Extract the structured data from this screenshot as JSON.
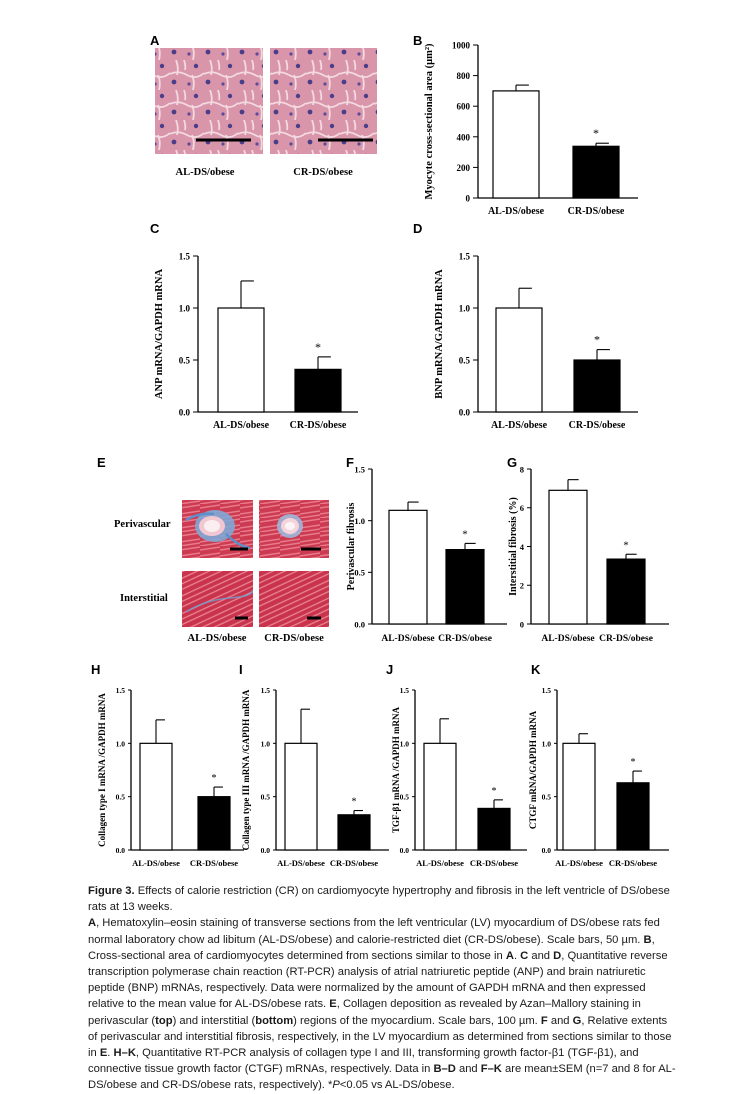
{
  "figure": {
    "panel_letters": [
      "A",
      "B",
      "C",
      "D",
      "E",
      "F",
      "G",
      "H",
      "I",
      "J",
      "K"
    ],
    "panelA": {
      "labels": [
        "AL-DS/obese",
        "CR-DS/obese"
      ]
    },
    "panelE": {
      "row_labels": [
        "Perivascular",
        "Interstitial"
      ],
      "col_labels": [
        "AL-DS/obese",
        "CR-DS/obese"
      ]
    },
    "colors": {
      "bar_al": "#ffffff",
      "bar_cr": "#000000",
      "tissue_he": "#d98fa6",
      "tissue_azan": "#c8334a",
      "azan_blue": "#6b9fd0",
      "nucleus": "#4a3d8a"
    }
  },
  "chart_data": [
    {
      "id": "B",
      "type": "bar",
      "ylabel": "Myocyte cross-sectional area (µm²)",
      "categories": [
        "AL-DS/obese",
        "CR-DS/obese"
      ],
      "values": [
        700,
        338
      ],
      "errors": [
        38,
        20
      ],
      "ylim": [
        0,
        1000
      ],
      "yticks": [
        "0",
        "200",
        "400",
        "600",
        "800",
        "1000"
      ],
      "yvals": [
        0,
        200,
        400,
        600,
        800,
        1000
      ],
      "annotations": [
        "",
        "*"
      ]
    },
    {
      "id": "C",
      "type": "bar",
      "ylabel": "ANP mRNA/GAPDH mRNA",
      "categories": [
        "AL-DS/obese",
        "CR-DS/obese"
      ],
      "values": [
        1.0,
        0.41
      ],
      "errors": [
        0.26,
        0.12
      ],
      "ylim": [
        0,
        1.5
      ],
      "yticks": [
        "0.0",
        "0.5",
        "1.0",
        "1.5"
      ],
      "yvals": [
        0,
        0.5,
        1.0,
        1.5
      ],
      "annotations": [
        "",
        "*"
      ]
    },
    {
      "id": "D",
      "type": "bar",
      "ylabel": "BNP mRNA/GAPDH mRNA",
      "categories": [
        "AL-DS/obese",
        "CR-DS/obese"
      ],
      "values": [
        1.0,
        0.5
      ],
      "errors": [
        0.19,
        0.1
      ],
      "ylim": [
        0,
        1.5
      ],
      "yticks": [
        "0.0",
        "0.5",
        "1.0",
        "1.5"
      ],
      "yvals": [
        0,
        0.5,
        1.0,
        1.5
      ],
      "annotations": [
        "",
        "*"
      ]
    },
    {
      "id": "F",
      "type": "bar",
      "ylabel": "Perivascular fibrosis",
      "categories": [
        "AL-DS/obese",
        "CR-DS/obese"
      ],
      "values": [
        1.1,
        0.72
      ],
      "errors": [
        0.08,
        0.06
      ],
      "ylim": [
        0,
        1.5
      ],
      "yticks": [
        "0.0",
        "0.5",
        "1.0",
        "1.5"
      ],
      "yvals": [
        0,
        0.5,
        1.0,
        1.5
      ],
      "annotations": [
        "",
        "*"
      ]
    },
    {
      "id": "G",
      "type": "bar",
      "ylabel": "Interstitial fibrosis (%)",
      "categories": [
        "AL-DS/obese",
        "CR-DS/obese"
      ],
      "values": [
        6.9,
        3.35
      ],
      "errors": [
        0.55,
        0.25
      ],
      "ylim": [
        0,
        8
      ],
      "yticks": [
        "0",
        "2",
        "4",
        "6",
        "8"
      ],
      "yvals": [
        0,
        2,
        4,
        6,
        8
      ],
      "annotations": [
        "",
        "*"
      ]
    },
    {
      "id": "H",
      "type": "bar",
      "ylabel": "Collagen type I mRNA /GAPDH mRNA",
      "categories": [
        "AL-DS/obese",
        "CR-DS/obese"
      ],
      "values": [
        1.0,
        0.5
      ],
      "errors": [
        0.22,
        0.09
      ],
      "ylim": [
        0,
        1.5
      ],
      "yticks": [
        "0.0",
        "0.5",
        "1.0",
        "1.5"
      ],
      "yvals": [
        0,
        0.5,
        1.0,
        1.5
      ],
      "annotations": [
        "",
        "*"
      ]
    },
    {
      "id": "I",
      "type": "bar",
      "ylabel": "Collagen type III mRNA /GAPDH mRNA",
      "categories": [
        "AL-DS/obese",
        "CR-DS/obese"
      ],
      "values": [
        1.0,
        0.33
      ],
      "errors": [
        0.32,
        0.04
      ],
      "ylim": [
        0,
        1.5
      ],
      "yticks": [
        "0.0",
        "0.5",
        "1.0",
        "1.5"
      ],
      "yvals": [
        0,
        0.5,
        1.0,
        1.5
      ],
      "annotations": [
        "",
        "*"
      ]
    },
    {
      "id": "J",
      "type": "bar",
      "ylabel": "TGF-β1 mRNA /GAPDH mRNA",
      "categories": [
        "AL-DS/obese",
        "CR-DS/obese"
      ],
      "values": [
        1.0,
        0.39
      ],
      "errors": [
        0.23,
        0.08
      ],
      "ylim": [
        0,
        1.5
      ],
      "yticks": [
        "0.0",
        "0.5",
        "1.0",
        "1.5"
      ],
      "yvals": [
        0,
        0.5,
        1.0,
        1.5
      ],
      "annotations": [
        "",
        "*"
      ]
    },
    {
      "id": "K",
      "type": "bar",
      "ylabel": "CTGF mRNA/GAPDH mRNA",
      "categories": [
        "AL-DS/obese",
        "CR-DS/obese"
      ],
      "values": [
        1.0,
        0.63
      ],
      "errors": [
        0.09,
        0.11
      ],
      "ylim": [
        0,
        1.5
      ],
      "yticks": [
        "0.0",
        "0.5",
        "1.0",
        "1.5"
      ],
      "yvals": [
        0,
        0.5,
        1.0,
        1.5
      ],
      "annotations": [
        "",
        "*"
      ]
    }
  ],
  "caption": {
    "label": "Figure 3.",
    "title": "Effects of calorie restriction (CR) on cardiomyocyte hypertrophy and fibrosis in the left ventricle of DS/obese rats at 13 weeks.",
    "text_A": ", Hematoxylin–eosin staining of transverse sections from the left ventricular (LV) myocardium of DS/obese rats fed normal laboratory chow ad libitum (AL-DS/obese) and calorie-restricted diet (CR-DS/obese). Scale bars, 50 µm. ",
    "text_B": ", Cross-sectional area of cardiomyocytes determined from sections similar to those in ",
    "text_A2": ". ",
    "text_CD_and": " and ",
    "text_CD": ", Quantitative reverse transcription polymerase chain reaction (RT-PCR) analysis of atrial natriuretic peptide (ANP) and brain natriuretic peptide (BNP) mRNAs, respectively. Data were normalized by the amount of GAPDH mRNA and then expressed relative to the mean value for AL-DS/obese rats. ",
    "text_E": ", Collagen deposition as revealed by Azan–Mallory staining in perivascular (",
    "word_top": "top",
    "text_E2": ") and interstitial (",
    "word_bottom": "bottom",
    "text_E3": ") regions of the myocardium. Scale bars, 100 µm. ",
    "text_FG_and": " and ",
    "text_FG": ", Relative extents of perivascular and interstitial fibrosis, respectively, in the LV myocardium as determined from sections similar to those in ",
    "text_E_ref": ". ",
    "text_HK": ", Quantitative RT-PCR analysis of collagen type I and III, transforming growth factor-β1 (TGF-β1), and connective tissue growth factor (CTGF) mRNAs, respectively. Data in ",
    "text_in_and": " and ",
    "text_sem": " are mean±SEM (n=7 and 8 for AL-DS/obese and CR-DS/obese rats, respectively). *",
    "p_italic": "P",
    "text_end": "<0.05 vs AL-DS/obese.",
    "refs": {
      "A": "A",
      "B": "B",
      "A_ref": "A",
      "C": "C",
      "D": "D",
      "E": "E",
      "F": "F",
      "G": "G",
      "E_ref": "E",
      "HK": "H–K",
      "BD": "B–D",
      "FK": "F–K"
    }
  }
}
